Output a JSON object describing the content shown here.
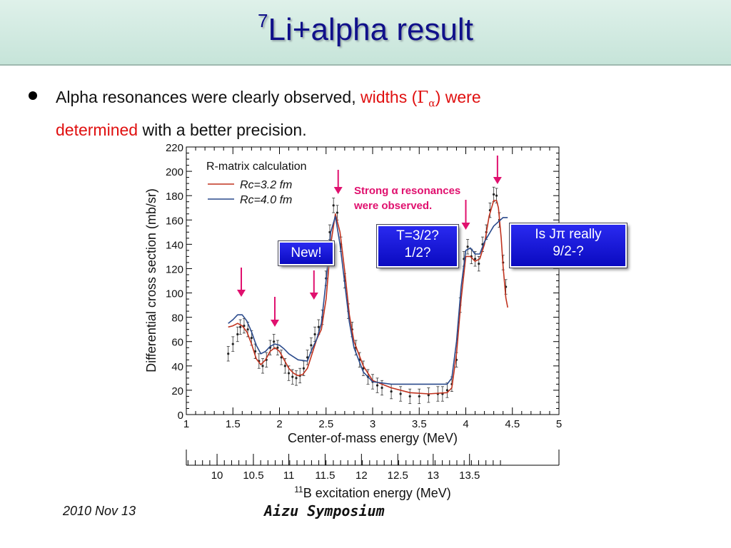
{
  "slide": {
    "title_sup": "7",
    "title_main": "Li+alpha result",
    "bullet_part1": "Alpha resonances were clearly observed, ",
    "bullet_red1": "widths (",
    "bullet_gamma": "Γ",
    "bullet_alpha": "α",
    "bullet_red2": ") were",
    "bullet_red3": "determined",
    "bullet_part2": " with a better precision.",
    "footer_date": "2010 Nov 13",
    "footer_event": "Aizu Symposium"
  },
  "colors": {
    "red_curve": "#c0321e",
    "blue_curve": "#2a4a8c",
    "arrow": "#e0106e",
    "callout": "#1a1ae0",
    "highlight_text": "#e0106e"
  },
  "chart_data": {
    "type": "scatter",
    "xlabel": "Center-of-mass energy (MeV)",
    "ylabel": "Differential cross section (mb/sr)",
    "x2label_sup": "11",
    "x2label": "B excitation energy (MeV)",
    "xlim": [
      1,
      5
    ],
    "ylim": [
      0,
      220
    ],
    "xticks": [
      "1",
      "1.5",
      "2",
      "2.5",
      "3",
      "3.5",
      "4",
      "4.5",
      "5"
    ],
    "yticks": [
      "0",
      "20",
      "40",
      "60",
      "80",
      "100",
      "120",
      "140",
      "160",
      "180",
      "200",
      "220"
    ],
    "x2ticks": [
      "10",
      "10.5",
      "11",
      "11.5",
      "12",
      "12.5",
      "13",
      "13.5"
    ],
    "x2_ticks_at_x": [
      1.33,
      1.72,
      2.1,
      2.49,
      2.88,
      3.27,
      3.65,
      4.04
    ],
    "legend_title": "R-matrix calculation",
    "legend": [
      {
        "label": "Rc=3.2 fm",
        "color": "#c0321e"
      },
      {
        "label": "Rc=4.0 fm",
        "color": "#2a4a8c"
      }
    ],
    "annotation": [
      "Strong α resonances",
      "were observed."
    ],
    "callouts": [
      "New!",
      "T=3/2?",
      "1/2?",
      "Is Jπ really",
      "9/2-?"
    ],
    "arrows_x": [
      1.59,
      1.95,
      2.37,
      2.63,
      4.0,
      4.34
    ],
    "series": [
      {
        "name": "Rc=3.2 fm",
        "color": "#c0321e",
        "x": [
          1.45,
          1.5,
          1.55,
          1.6,
          1.65,
          1.7,
          1.75,
          1.8,
          1.85,
          1.9,
          1.95,
          2.0,
          2.05,
          2.1,
          2.15,
          2.2,
          2.25,
          2.3,
          2.35,
          2.4,
          2.45,
          2.5,
          2.55,
          2.6,
          2.65,
          2.7,
          2.75,
          2.8,
          2.9,
          3.0,
          3.2,
          3.4,
          3.6,
          3.8,
          3.85,
          3.9,
          3.95,
          4.0,
          4.05,
          4.1,
          4.15,
          4.2,
          4.25,
          4.3,
          4.33,
          4.35,
          4.38,
          4.4,
          4.43,
          4.45
        ],
        "y": [
          72,
          73,
          75,
          73,
          68,
          58,
          46,
          41,
          45,
          52,
          55,
          52,
          45,
          38,
          34,
          32,
          33,
          38,
          50,
          62,
          70,
          95,
          140,
          165,
          150,
          118,
          82,
          60,
          40,
          28,
          22,
          18,
          17,
          18,
          22,
          50,
          95,
          130,
          130,
          126,
          128,
          140,
          163,
          176,
          176,
          170,
          145,
          122,
          96,
          88
        ]
      },
      {
        "name": "Rc=4.0 fm",
        "color": "#2a4a8c",
        "x": [
          1.45,
          1.5,
          1.55,
          1.6,
          1.65,
          1.7,
          1.75,
          1.8,
          1.85,
          1.9,
          1.95,
          2.0,
          2.05,
          2.1,
          2.2,
          2.3,
          2.35,
          2.4,
          2.45,
          2.5,
          2.55,
          2.6,
          2.65,
          2.7,
          2.75,
          2.8,
          2.9,
          3.0,
          3.2,
          3.4,
          3.6,
          3.8,
          3.85,
          3.9,
          3.95,
          4.0,
          4.05,
          4.1,
          4.15,
          4.2,
          4.3,
          4.4,
          4.45
        ],
        "y": [
          75,
          78,
          82,
          82,
          77,
          68,
          57,
          50,
          52,
          56,
          58,
          57,
          54,
          50,
          45,
          44,
          54,
          62,
          75,
          110,
          150,
          163,
          140,
          108,
          76,
          55,
          35,
          27,
          25,
          25,
          25,
          25,
          30,
          60,
          105,
          135,
          137,
          132,
          132,
          142,
          155,
          162,
          162
        ]
      },
      {
        "name": "data",
        "x": [
          1.45,
          1.5,
          1.55,
          1.58,
          1.62,
          1.66,
          1.7,
          1.74,
          1.78,
          1.82,
          1.86,
          1.9,
          1.94,
          1.98,
          2.02,
          2.06,
          2.1,
          2.14,
          2.18,
          2.22,
          2.26,
          2.3,
          2.34,
          2.38,
          2.42,
          2.46,
          2.5,
          2.54,
          2.58,
          2.62,
          2.66,
          2.7,
          2.74,
          2.78,
          2.82,
          2.86,
          2.9,
          2.95,
          3.0,
          3.05,
          3.1,
          3.2,
          3.3,
          3.4,
          3.5,
          3.6,
          3.7,
          3.75,
          3.8,
          3.85,
          3.9,
          3.94,
          3.98,
          4.02,
          4.06,
          4.1,
          4.14,
          4.18,
          4.22,
          4.26,
          4.3,
          4.33,
          4.36,
          4.4,
          4.43
        ],
        "y": [
          50,
          58,
          66,
          72,
          73,
          70,
          63,
          52,
          44,
          40,
          45,
          55,
          60,
          55,
          47,
          40,
          34,
          31,
          30,
          32,
          38,
          47,
          57,
          66,
          72,
          80,
          112,
          150,
          172,
          166,
          140,
          110,
          85,
          70,
          55,
          45,
          38,
          31,
          27,
          24,
          22,
          19,
          17,
          15,
          15,
          16,
          17,
          17,
          20,
          25,
          45,
          90,
          128,
          138,
          130,
          128,
          124,
          140,
          150,
          168,
          181,
          180,
          160,
          125,
          105
        ],
        "err": 6
      }
    ]
  }
}
